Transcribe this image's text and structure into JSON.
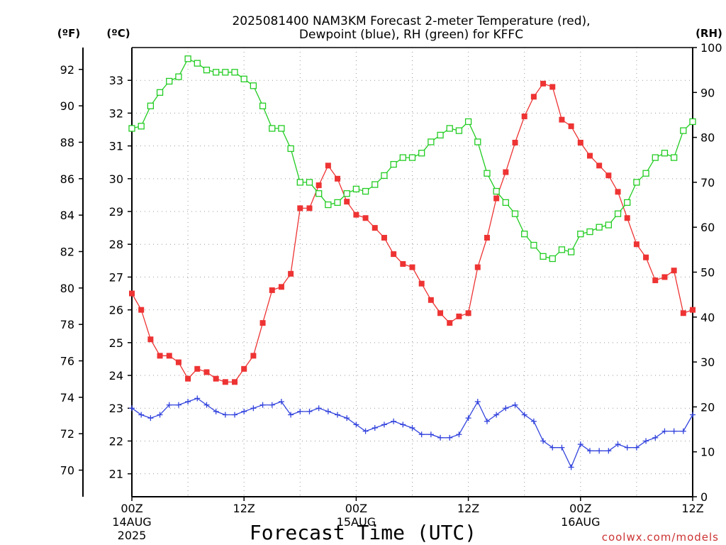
{
  "title_line1": "2025081400 NAM3KM Forecast 2-meter Temperature (red),",
  "title_line2": "Dewpoint (blue), RH (green) for KFFC",
  "xlabel": "Forecast Time (UTC)",
  "credit": "coolwx.com/models",
  "unit_f": "(ºF)",
  "unit_c": "(ºC)",
  "unit_rh": "(RH)",
  "x_ticks": [
    {
      "hour": 0,
      "label": "00Z",
      "sub1": "14AUG",
      "sub2": "2025"
    },
    {
      "hour": 12,
      "label": "12Z",
      "sub1": "",
      "sub2": ""
    },
    {
      "hour": 24,
      "label": "00Z",
      "sub1": "15AUG",
      "sub2": ""
    },
    {
      "hour": 36,
      "label": "12Z",
      "sub1": "",
      "sub2": ""
    },
    {
      "hour": 48,
      "label": "00Z",
      "sub1": "16AUG",
      "sub2": ""
    },
    {
      "hour": 60,
      "label": "12Z",
      "sub1": "",
      "sub2": ""
    }
  ],
  "chart_data": {
    "type": "line",
    "xlim": [
      0,
      60
    ],
    "ylim_c": [
      20.3,
      34.0
    ],
    "ylim_rh": [
      0,
      100
    ],
    "y_ticks_f": [
      "92",
      "90",
      "88",
      "86",
      "84",
      "82",
      "80",
      "78",
      "76",
      "74",
      "72",
      "70"
    ],
    "y_ticks_c": [
      "33",
      "32",
      "31",
      "30",
      "29",
      "28",
      "27",
      "26",
      "25",
      "24",
      "23",
      "22",
      "21"
    ],
    "y_ticks_rh": [
      "100",
      "90",
      "80",
      "70",
      "60",
      "50",
      "40",
      "30",
      "20",
      "10",
      "0"
    ],
    "grid": true,
    "series": [
      {
        "color": "#ee3333",
        "marker": "filled-square",
        "axis": "celsius",
        "x": [
          0,
          1,
          2,
          3,
          4,
          5,
          6,
          7,
          8,
          9,
          10,
          11,
          12,
          13,
          14,
          15,
          16,
          17,
          18,
          19,
          20,
          21,
          22,
          23,
          24,
          25,
          26,
          27,
          28,
          29,
          30,
          31,
          32,
          33,
          34,
          35,
          36,
          37,
          38,
          39,
          40,
          41,
          42,
          43,
          44,
          45,
          46,
          47,
          48,
          49,
          50,
          51,
          52,
          53,
          54,
          55,
          56,
          57,
          58,
          59,
          60
        ],
        "values": [
          26.5,
          26.0,
          25.1,
          24.6,
          24.6,
          24.4,
          23.9,
          24.2,
          24.1,
          23.9,
          23.8,
          23.8,
          24.2,
          24.6,
          25.6,
          26.6,
          26.7,
          27.1,
          29.1,
          29.1,
          29.8,
          30.4,
          30.0,
          29.3,
          28.9,
          28.8,
          28.5,
          28.2,
          27.7,
          27.4,
          27.3,
          26.8,
          26.3,
          25.9,
          25.6,
          25.8,
          25.9,
          27.3,
          28.2,
          29.4,
          30.2,
          31.1,
          31.9,
          32.5,
          32.9,
          32.8,
          31.8,
          31.6,
          31.1,
          30.7,
          30.4,
          30.1,
          29.6,
          28.8,
          28.0,
          27.6,
          26.9,
          27.0,
          27.2,
          25.9,
          26.0
        ]
      },
      {
        "color": "#3344dd",
        "marker": "plus",
        "axis": "celsius",
        "x": [
          0,
          1,
          2,
          3,
          4,
          5,
          6,
          7,
          8,
          9,
          10,
          11,
          12,
          13,
          14,
          15,
          16,
          17,
          18,
          19,
          20,
          21,
          22,
          23,
          24,
          25,
          26,
          27,
          28,
          29,
          30,
          31,
          32,
          33,
          34,
          35,
          36,
          37,
          38,
          39,
          40,
          41,
          42,
          43,
          44,
          45,
          46,
          47,
          48,
          49,
          50,
          51,
          52,
          53,
          54,
          55,
          56,
          57,
          58,
          59,
          60
        ],
        "values": [
          23.0,
          22.8,
          22.7,
          22.8,
          23.1,
          23.1,
          23.2,
          23.3,
          23.1,
          22.9,
          22.8,
          22.8,
          22.9,
          23.0,
          23.1,
          23.1,
          23.2,
          22.8,
          22.9,
          22.9,
          23.0,
          22.9,
          22.8,
          22.7,
          22.5,
          22.3,
          22.4,
          22.5,
          22.6,
          22.5,
          22.4,
          22.2,
          22.2,
          22.1,
          22.1,
          22.2,
          22.7,
          23.2,
          22.6,
          22.8,
          23.0,
          23.1,
          22.8,
          22.6,
          22.0,
          21.8,
          21.8,
          21.2,
          21.9,
          21.7,
          21.7,
          21.7,
          21.9,
          21.8,
          21.8,
          22.0,
          22.1,
          22.3,
          22.3,
          22.3,
          22.8
        ]
      },
      {
        "color": "#22cc22",
        "marker": "open-square",
        "axis": "rh",
        "x": [
          0,
          1,
          2,
          3,
          4,
          5,
          6,
          7,
          8,
          9,
          10,
          11,
          12,
          13,
          14,
          15,
          16,
          17,
          18,
          19,
          20,
          21,
          22,
          23,
          24,
          25,
          26,
          27,
          28,
          29,
          30,
          31,
          32,
          33,
          34,
          35,
          36,
          37,
          38,
          39,
          40,
          41,
          42,
          43,
          44,
          45,
          46,
          47,
          48,
          49,
          50,
          51,
          52,
          53,
          54,
          55,
          56,
          57,
          58,
          59,
          60
        ],
        "values": [
          82,
          82.5,
          87,
          90,
          92.5,
          93.5,
          97.5,
          96.5,
          95,
          94.5,
          94.5,
          94.5,
          93,
          91.5,
          87,
          82,
          82,
          77.5,
          70,
          70,
          67.5,
          65,
          65.5,
          67.5,
          68.5,
          68,
          69.5,
          71.5,
          74,
          75.5,
          75.5,
          76.5,
          79,
          80.5,
          82,
          81.5,
          83.5,
          79,
          72,
          68,
          65.5,
          63,
          58.5,
          56,
          53.5,
          53,
          55,
          54.5,
          58.5,
          59,
          60,
          60.5,
          63,
          65.5,
          70,
          72,
          75.5,
          76.5,
          75.5,
          81.5,
          83.5
        ]
      }
    ]
  }
}
